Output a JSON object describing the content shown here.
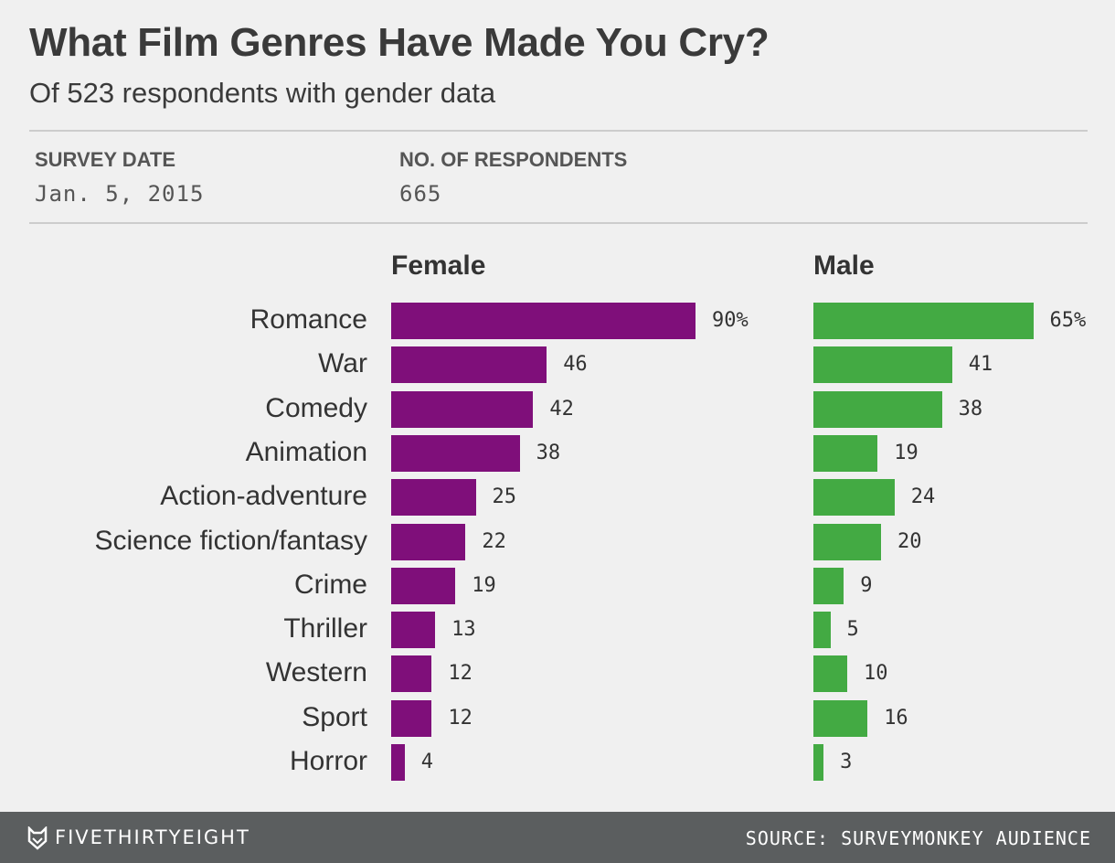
{
  "header": {
    "title": "What Film Genres Have Made You Cry?",
    "subtitle": "Of 523 respondents with gender data"
  },
  "meta": {
    "survey_date_label": "SURVEY DATE",
    "survey_date": "Jan. 5, 2015",
    "respondents_label": "NO. OF RESPONDENTS",
    "respondents": "665"
  },
  "footer": {
    "brand": "FIVETHIRTYEIGHT",
    "source": "SOURCE: SURVEYMONKEY AUDIENCE"
  },
  "chart_data": {
    "type": "bar",
    "orientation": "horizontal",
    "unit": "%",
    "categories": [
      "Romance",
      "War",
      "Comedy",
      "Animation",
      "Action-adventure",
      "Science fiction/fantasy",
      "Crime",
      "Thriller",
      "Western",
      "Sport",
      "Horror"
    ],
    "series": [
      {
        "name": "Female",
        "color": "#7f0f7a",
        "values": [
          90,
          46,
          42,
          38,
          25,
          22,
          19,
          13,
          12,
          12,
          4
        ]
      },
      {
        "name": "Male",
        "color": "#43aa43",
        "values": [
          65,
          41,
          38,
          19,
          24,
          20,
          9,
          5,
          10,
          16,
          3
        ]
      }
    ],
    "xlim": [
      0,
      100
    ],
    "grid": false
  }
}
